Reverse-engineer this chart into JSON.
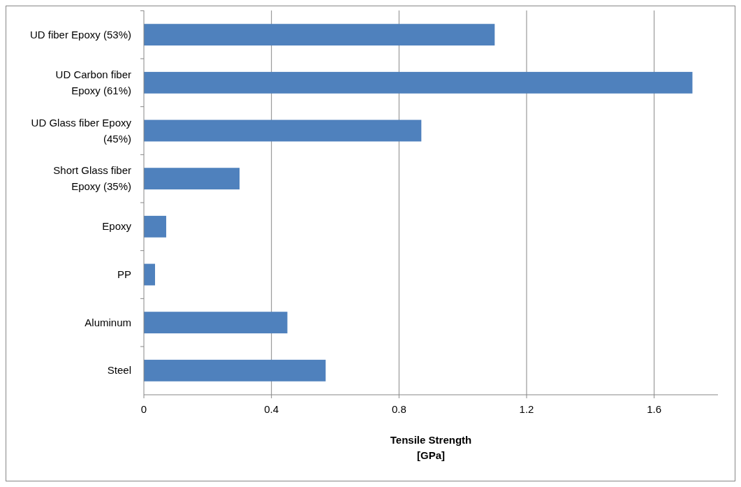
{
  "chart_data": {
    "type": "bar",
    "orientation": "horizontal",
    "xlabel": "Tensile Strength [GPa]",
    "categories": [
      "UD fiber Epoxy (53%)",
      "UD Carbon fiber Epoxy (61%)",
      "UD Glass fiber Epoxy (45%)",
      "Short Glass fiber Epoxy (35%)",
      "Epoxy",
      "PP",
      "Aluminum",
      "Steel"
    ],
    "values": [
      1.1,
      1.72,
      0.87,
      0.3,
      0.07,
      0.035,
      0.45,
      0.57
    ],
    "color": "#4f81bd",
    "xlim": [
      0,
      1.8
    ],
    "xticks": [
      0,
      0.4,
      0.8,
      1.2,
      1.6
    ],
    "grid": "x"
  }
}
